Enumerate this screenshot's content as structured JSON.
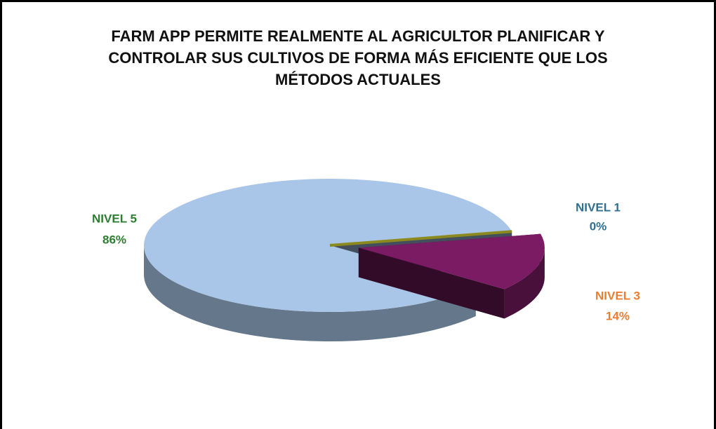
{
  "chart_data": {
    "type": "pie",
    "title": "FARM APP PERMITE REALMENTE AL AGRICULTOR PLANIFICAR Y CONTROLAR SUS CULTIVOS DE FORMA MÁS EFICIENTE QUE LOS MÉTODOS ACTUALES",
    "categories": [
      "NIVEL 1",
      "NIVEL 3",
      "NIVEL 5"
    ],
    "values": [
      0,
      14,
      86
    ],
    "value_labels": [
      "0%",
      "14%",
      "86%"
    ],
    "colors": [
      "#8c8a1e",
      "#7a1b64",
      "#a9c6e8"
    ],
    "label_colors": [
      "#2f6f8f",
      "#ed7d31",
      "#2e7d32"
    ]
  }
}
